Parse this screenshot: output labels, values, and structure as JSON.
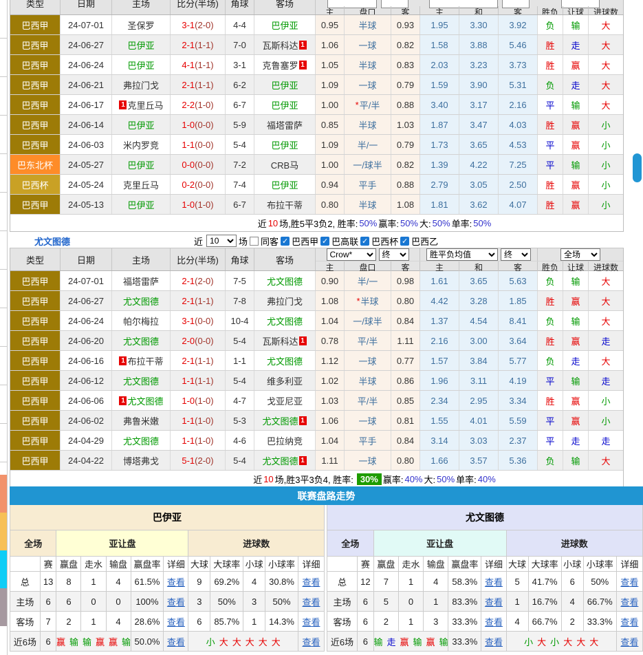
{
  "heads": {
    "cols": [
      "类型",
      "日期",
      "主场",
      "比分(半场)",
      "角球",
      "客场"
    ],
    "odds": [
      "主",
      "盘口",
      "客",
      "主",
      "和",
      "客",
      "胜负",
      "让球",
      "进球数"
    ]
  },
  "misc": {
    "badge": "1",
    "link": "查看"
  },
  "colors": {
    "bar_blue": "#2095d2",
    "green_badge": "#1e9c00",
    "win_red": "#e60000",
    "draw_blue": "#0000cc",
    "lose_green": "#009900",
    "league_jia": "#9d7b07",
    "league_dongbei": "#fe8c28",
    "league_bei": "#c9a125"
  },
  "t1": {
    "rows": [
      {
        "lt": "jia",
        "lg": "巴西甲",
        "dt": "24-07-01",
        "hm": "圣保罗",
        "hb": 0,
        "hf": 0,
        "sc": "3-1",
        "sh": "(2-0)",
        "cn": "4-4",
        "aw": "巴伊亚",
        "ab": 0,
        "af": 1,
        "o1": "0.95",
        "st": 0,
        "hc": "半球",
        "o2": "0.93",
        "w": "1.95",
        "d": "3.30",
        "l": "3.92",
        "r1": "负",
        "c1": "g",
        "r2": "输",
        "c2": "g",
        "r3": "大",
        "c3": "r"
      },
      {
        "lt": "jia",
        "lg": "巴西甲",
        "dt": "24-06-27",
        "hm": "巴伊亚",
        "hb": 0,
        "hf": 1,
        "sc": "2-1",
        "sh": "(1-1)",
        "cn": "7-0",
        "aw": "瓦斯科达",
        "ab": 2,
        "af": 0,
        "o1": "1.06",
        "st": 0,
        "hc": "一球",
        "o2": "0.82",
        "w": "1.58",
        "d": "3.88",
        "l": "5.46",
        "r1": "胜",
        "c1": "r",
        "r2": "走",
        "c2": "b",
        "r3": "大",
        "c3": "r"
      },
      {
        "lt": "jia",
        "lg": "巴西甲",
        "dt": "24-06-24",
        "hm": "巴伊亚",
        "hb": 0,
        "hf": 1,
        "sc": "4-1",
        "sh": "(1-1)",
        "cn": "3-1",
        "aw": "克鲁塞罗",
        "ab": 2,
        "af": 0,
        "o1": "1.05",
        "st": 0,
        "hc": "半球",
        "o2": "0.83",
        "w": "2.03",
        "d": "3.23",
        "l": "3.73",
        "r1": "胜",
        "c1": "r",
        "r2": "赢",
        "c2": "r",
        "r3": "大",
        "c3": "r"
      },
      {
        "lt": "jia",
        "lg": "巴西甲",
        "dt": "24-06-21",
        "hm": "弗拉门戈",
        "hb": 0,
        "hf": 0,
        "sc": "2-1",
        "sh": "(1-1)",
        "cn": "6-2",
        "aw": "巴伊亚",
        "ab": 0,
        "af": 1,
        "o1": "1.09",
        "st": 0,
        "hc": "一球",
        "o2": "0.79",
        "w": "1.59",
        "d": "3.90",
        "l": "5.31",
        "r1": "负",
        "c1": "g",
        "r2": "走",
        "c2": "b",
        "r3": "大",
        "c3": "r"
      },
      {
        "lt": "jia",
        "lg": "巴西甲",
        "dt": "24-06-17",
        "hm": "克里丘马",
        "hb": 1,
        "hf": 0,
        "sc": "2-2",
        "sh": "(1-0)",
        "cn": "6-7",
        "aw": "巴伊亚",
        "ab": 0,
        "af": 1,
        "o1": "1.00",
        "st": 1,
        "hc": "平/半",
        "o2": "0.88",
        "w": "3.40",
        "d": "3.17",
        "l": "2.16",
        "r1": "平",
        "c1": "b",
        "r2": "输",
        "c2": "g",
        "r3": "大",
        "c3": "r"
      },
      {
        "lt": "jia",
        "lg": "巴西甲",
        "dt": "24-06-14",
        "hm": "巴伊亚",
        "hb": 0,
        "hf": 1,
        "sc": "1-0",
        "sh": "(0-0)",
        "cn": "5-9",
        "aw": "福塔雷萨",
        "ab": 0,
        "af": 0,
        "o1": "0.85",
        "st": 0,
        "hc": "半球",
        "o2": "1.03",
        "w": "1.87",
        "d": "3.47",
        "l": "4.03",
        "r1": "胜",
        "c1": "r",
        "r2": "赢",
        "c2": "r",
        "r3": "小",
        "c3": "g"
      },
      {
        "lt": "jia",
        "lg": "巴西甲",
        "dt": "24-06-03",
        "hm": "米内罗竞",
        "hb": 0,
        "hf": 0,
        "sc": "1-1",
        "sh": "(0-0)",
        "cn": "5-4",
        "aw": "巴伊亚",
        "ab": 0,
        "af": 1,
        "o1": "1.09",
        "st": 0,
        "hc": "半/一",
        "o2": "0.79",
        "w": "1.73",
        "d": "3.65",
        "l": "4.53",
        "r1": "平",
        "c1": "b",
        "r2": "赢",
        "c2": "r",
        "r3": "小",
        "c3": "g"
      },
      {
        "lt": "db",
        "lg": "巴东北杯",
        "dt": "24-05-27",
        "hm": "巴伊亚",
        "hb": 0,
        "hf": 1,
        "sc": "0-0",
        "sh": "(0-0)",
        "cn": "7-2",
        "aw": "CRB马",
        "ab": 0,
        "af": 0,
        "o1": "1.00",
        "st": 0,
        "hc": "一/球半",
        "o2": "0.82",
        "w": "1.39",
        "d": "4.22",
        "l": "7.25",
        "r1": "平",
        "c1": "b",
        "r2": "输",
        "c2": "g",
        "r3": "小",
        "c3": "g"
      },
      {
        "lt": "bei",
        "lg": "巴西杯",
        "dt": "24-05-24",
        "hm": "克里丘马",
        "hb": 0,
        "hf": 0,
        "sc": "0-2",
        "sh": "(0-0)",
        "cn": "7-4",
        "aw": "巴伊亚",
        "ab": 0,
        "af": 1,
        "o1": "0.94",
        "st": 0,
        "hc": "平手",
        "o2": "0.88",
        "w": "2.79",
        "d": "3.05",
        "l": "2.50",
        "r1": "胜",
        "c1": "r",
        "r2": "赢",
        "c2": "r",
        "r3": "小",
        "c3": "g"
      },
      {
        "lt": "jia",
        "lg": "巴西甲",
        "dt": "24-05-13",
        "hm": "巴伊亚",
        "hb": 0,
        "hf": 1,
        "sc": "1-0",
        "sh": "(1-0)",
        "cn": "6-7",
        "aw": "布拉干蒂",
        "ab": 0,
        "af": 0,
        "o1": "0.80",
        "st": 0,
        "hc": "半球",
        "o2": "1.08",
        "w": "1.81",
        "d": "3.62",
        "l": "4.07",
        "r1": "胜",
        "c1": "r",
        "r2": "赢",
        "c2": "r",
        "r3": "小",
        "c3": "g"
      }
    ]
  },
  "s1": {
    "a": "近",
    "n": "10",
    "b": "场,胜5平3负2, 胜率:",
    "v1": "50%",
    "l2": "赢率:",
    "v2": "50%",
    "l3": "大:",
    "v3": "50%",
    "l4": "单率:",
    "v4": "50%"
  },
  "filter": {
    "team": "尤文图德",
    "pre": "近",
    "post": "场",
    "same": "同客",
    "leagues": [
      "巴西甲",
      "巴高联",
      "巴西杯",
      "巴西乙"
    ]
  },
  "selects": {
    "recent_n": "10",
    "book": "Crow*",
    "fin1": "终",
    "avg": "胜平负均值",
    "fin2": "终",
    "scope": "全场"
  },
  "t2": {
    "rows": [
      {
        "lt": "jia",
        "lg": "巴西甲",
        "dt": "24-07-01",
        "hm": "福塔雷萨",
        "hb": 0,
        "hf": 0,
        "sc": "2-1",
        "sh": "(2-0)",
        "cn": "7-5",
        "aw": "尤文图德",
        "ab": 0,
        "af": 1,
        "o1": "0.90",
        "st": 0,
        "hc": "半/一",
        "o2": "0.98",
        "w": "1.61",
        "d": "3.65",
        "l": "5.63",
        "r1": "负",
        "c1": "g",
        "r2": "输",
        "c2": "g",
        "r3": "大",
        "c3": "r"
      },
      {
        "lt": "jia",
        "lg": "巴西甲",
        "dt": "24-06-27",
        "hm": "尤文图德",
        "hb": 0,
        "hf": 1,
        "sc": "2-1",
        "sh": "(1-1)",
        "cn": "7-8",
        "aw": "弗拉门戈",
        "ab": 0,
        "af": 0,
        "o1": "1.08",
        "st": 1,
        "hc": "半球",
        "o2": "0.80",
        "w": "4.42",
        "d": "3.28",
        "l": "1.85",
        "r1": "胜",
        "c1": "r",
        "r2": "赢",
        "c2": "r",
        "r3": "大",
        "c3": "r"
      },
      {
        "lt": "jia",
        "lg": "巴西甲",
        "dt": "24-06-24",
        "hm": "帕尔梅拉",
        "hb": 0,
        "hf": 0,
        "sc": "3-1",
        "sh": "(0-0)",
        "cn": "10-4",
        "aw": "尤文图德",
        "ab": 0,
        "af": 1,
        "o1": "1.04",
        "st": 0,
        "hc": "一/球半",
        "o2": "0.84",
        "w": "1.37",
        "d": "4.54",
        "l": "8.41",
        "r1": "负",
        "c1": "g",
        "r2": "输",
        "c2": "g",
        "r3": "大",
        "c3": "r"
      },
      {
        "lt": "jia",
        "lg": "巴西甲",
        "dt": "24-06-20",
        "hm": "尤文图德",
        "hb": 0,
        "hf": 1,
        "sc": "2-0",
        "sh": "(0-0)",
        "cn": "5-4",
        "aw": "瓦斯科达",
        "ab": 2,
        "af": 0,
        "o1": "0.78",
        "st": 0,
        "hc": "平/半",
        "o2": "1.11",
        "w": "2.16",
        "d": "3.00",
        "l": "3.64",
        "r1": "胜",
        "c1": "r",
        "r2": "赢",
        "c2": "r",
        "r3": "走",
        "c3": "b"
      },
      {
        "lt": "jia",
        "lg": "巴西甲",
        "dt": "24-06-16",
        "hm": "布拉干蒂",
        "hb": 1,
        "hf": 0,
        "sc": "2-1",
        "sh": "(1-1)",
        "cn": "1-1",
        "aw": "尤文图德",
        "ab": 0,
        "af": 1,
        "o1": "1.12",
        "st": 0,
        "hc": "一球",
        "o2": "0.77",
        "w": "1.57",
        "d": "3.84",
        "l": "5.77",
        "r1": "负",
        "c1": "g",
        "r2": "走",
        "c2": "b",
        "r3": "大",
        "c3": "r"
      },
      {
        "lt": "jia",
        "lg": "巴西甲",
        "dt": "24-06-12",
        "hm": "尤文图德",
        "hb": 0,
        "hf": 1,
        "sc": "1-1",
        "sh": "(1-1)",
        "cn": "5-4",
        "aw": "维多利亚",
        "ab": 0,
        "af": 0,
        "o1": "1.02",
        "st": 0,
        "hc": "半球",
        "o2": "0.86",
        "w": "1.96",
        "d": "3.11",
        "l": "4.19",
        "r1": "平",
        "c1": "b",
        "r2": "输",
        "c2": "g",
        "r3": "走",
        "c3": "b"
      },
      {
        "lt": "jia",
        "lg": "巴西甲",
        "dt": "24-06-06",
        "hm": "尤文图德",
        "hb": 1,
        "hf": 1,
        "sc": "1-0",
        "sh": "(1-0)",
        "cn": "4-7",
        "aw": "戈亚尼亚",
        "ab": 0,
        "af": 0,
        "o1": "1.03",
        "st": 0,
        "hc": "平/半",
        "o2": "0.85",
        "w": "2.34",
        "d": "2.95",
        "l": "3.34",
        "r1": "胜",
        "c1": "r",
        "r2": "赢",
        "c2": "r",
        "r3": "小",
        "c3": "g"
      },
      {
        "lt": "jia",
        "lg": "巴西甲",
        "dt": "24-06-02",
        "hm": "弗鲁米嫩",
        "hb": 0,
        "hf": 0,
        "sc": "1-1",
        "sh": "(1-0)",
        "cn": "5-3",
        "aw": "尤文图德",
        "ab": 2,
        "af": 1,
        "o1": "1.06",
        "st": 0,
        "hc": "一球",
        "o2": "0.81",
        "w": "1.55",
        "d": "4.01",
        "l": "5.59",
        "r1": "平",
        "c1": "b",
        "r2": "赢",
        "c2": "r",
        "r3": "小",
        "c3": "g"
      },
      {
        "lt": "jia",
        "lg": "巴西甲",
        "dt": "24-04-29",
        "hm": "尤文图德",
        "hb": 0,
        "hf": 1,
        "sc": "1-1",
        "sh": "(1-0)",
        "cn": "4-6",
        "aw": "巴拉纳竞",
        "ab": 0,
        "af": 0,
        "o1": "1.04",
        "st": 0,
        "hc": "平手",
        "o2": "0.84",
        "w": "3.14",
        "d": "3.03",
        "l": "2.37",
        "r1": "平",
        "c1": "b",
        "r2": "走",
        "c2": "b",
        "r3": "走",
        "c3": "b"
      },
      {
        "lt": "jia",
        "lg": "巴西甲",
        "dt": "24-04-22",
        "hm": "博塔弗戈",
        "hb": 0,
        "hf": 0,
        "sc": "5-1",
        "sh": "(2-0)",
        "cn": "5-4",
        "aw": "尤文图德",
        "ab": 2,
        "af": 1,
        "o1": "1.11",
        "st": 0,
        "hc": "一球",
        "o2": "0.80",
        "w": "1.66",
        "d": "3.57",
        "l": "5.36",
        "r1": "负",
        "c1": "g",
        "r2": "输",
        "c2": "g",
        "r3": "大",
        "c3": "r"
      }
    ]
  },
  "s2": {
    "a": "近",
    "n": "10",
    "b": "场,胜3平3负4, 胜率:",
    "badge": "30%",
    "l2": "赢率:",
    "v2": "40%",
    "l3": "大:",
    "v3": "50%",
    "l4": "单率:",
    "v4": "40%"
  },
  "trend": {
    "title": "联赛盘路走势"
  },
  "panel_heads": {
    "groups": [
      "全场",
      "亚让盘",
      "进球数"
    ],
    "cols": [
      "",
      "赛",
      "赢盘",
      "走水",
      "输盘",
      "赢盘率",
      "详细",
      "大球",
      "大球率",
      "小球",
      "小球率",
      "详细"
    ]
  },
  "panels": {
    "left": {
      "title": "巴伊亚",
      "rows": [
        {
          "label": "总",
          "vals": [
            "13",
            "8",
            "1",
            "4",
            "61.5%"
          ],
          "goals": [
            "9",
            "69.2%",
            "4",
            "30.8%"
          ]
        },
        {
          "label": "主场",
          "vals": [
            "6",
            "6",
            "0",
            "0",
            "100%"
          ],
          "goals": [
            "3",
            "50%",
            "3",
            "50%"
          ]
        },
        {
          "label": "客场",
          "vals": [
            "7",
            "2",
            "1",
            "4",
            "28.6%"
          ],
          "goals": [
            "6",
            "85.7%",
            "1",
            "14.3%"
          ]
        }
      ],
      "recent": {
        "label": "近6场",
        "n": "6",
        "seq": [
          [
            "赢",
            "r"
          ],
          [
            "输",
            "g"
          ],
          [
            "输",
            "g"
          ],
          [
            "赢",
            "r"
          ],
          [
            "赢",
            "r"
          ],
          [
            "输",
            "g"
          ]
        ],
        "rate": "50.0%",
        "goals_seq": [
          [
            "小",
            "g"
          ],
          [
            "大",
            "r"
          ],
          [
            "大",
            "r"
          ],
          [
            "大",
            "r"
          ],
          [
            "大",
            "r"
          ],
          [
            "大",
            "r"
          ]
        ]
      }
    },
    "right": {
      "title": "尤文图德",
      "rows": [
        {
          "label": "总",
          "vals": [
            "12",
            "7",
            "1",
            "4",
            "58.3%"
          ],
          "goals": [
            "5",
            "41.7%",
            "6",
            "50%"
          ]
        },
        {
          "label": "主场",
          "vals": [
            "6",
            "5",
            "0",
            "1",
            "83.3%"
          ],
          "goals": [
            "1",
            "16.7%",
            "4",
            "66.7%"
          ]
        },
        {
          "label": "客场",
          "vals": [
            "6",
            "2",
            "1",
            "3",
            "33.3%"
          ],
          "goals": [
            "4",
            "66.7%",
            "2",
            "33.3%"
          ]
        }
      ],
      "recent": {
        "label": "近6场",
        "n": "6",
        "seq": [
          [
            "输",
            "g"
          ],
          [
            "走",
            "b"
          ],
          [
            "赢",
            "r"
          ],
          [
            "输",
            "g"
          ],
          [
            "赢",
            "r"
          ],
          [
            "输",
            "g"
          ]
        ],
        "rate": "33.3%",
        "goals_seq": [
          [
            "小",
            "g"
          ],
          [
            "大",
            "r"
          ],
          [
            "小",
            "g"
          ],
          [
            "大",
            "r"
          ],
          [
            "大",
            "r"
          ],
          [
            "大",
            "r"
          ]
        ]
      }
    }
  }
}
